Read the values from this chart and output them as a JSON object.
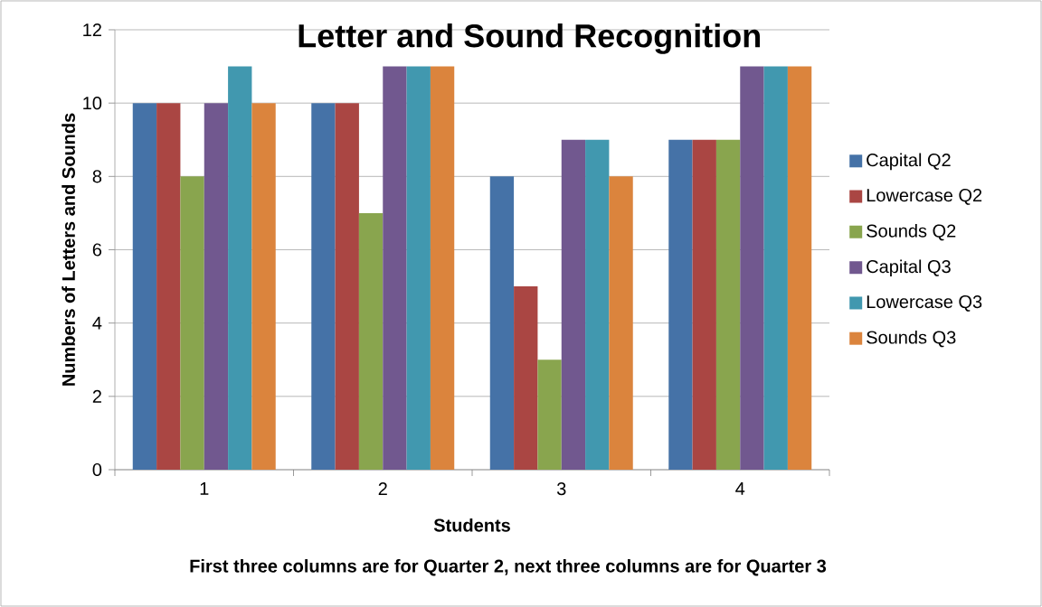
{
  "chart_data": {
    "type": "bar",
    "title": "Letter and Sound Recognition",
    "xlabel": "Students",
    "ylabel": "Numbers of Letters and Sounds",
    "annotations": [
      "First three columns are for Quarter 2, next three columns are for Quarter 3"
    ],
    "categories": [
      "1",
      "2",
      "3",
      "4"
    ],
    "series": [
      {
        "name": "Capital Q2",
        "color": "#4572a7",
        "values": [
          10,
          10,
          8,
          9
        ]
      },
      {
        "name": "Lowercase Q2",
        "color": "#aa4643",
        "values": [
          10,
          10,
          5,
          9
        ]
      },
      {
        "name": "Sounds Q2",
        "color": "#89a54e",
        "values": [
          8,
          7,
          3,
          9
        ]
      },
      {
        "name": "Capital Q3",
        "color": "#71588f",
        "values": [
          10,
          11,
          9,
          11
        ]
      },
      {
        "name": "Lowercase Q3",
        "color": "#4198af",
        "values": [
          11,
          11,
          9,
          11
        ]
      },
      {
        "name": "Sounds Q3",
        "color": "#db843d",
        "values": [
          10,
          11,
          8,
          11
        ]
      }
    ],
    "ylim": [
      0,
      12
    ],
    "yticks": [
      0,
      2,
      4,
      6,
      8,
      10,
      12
    ],
    "grid": "y",
    "legend": "right"
  }
}
